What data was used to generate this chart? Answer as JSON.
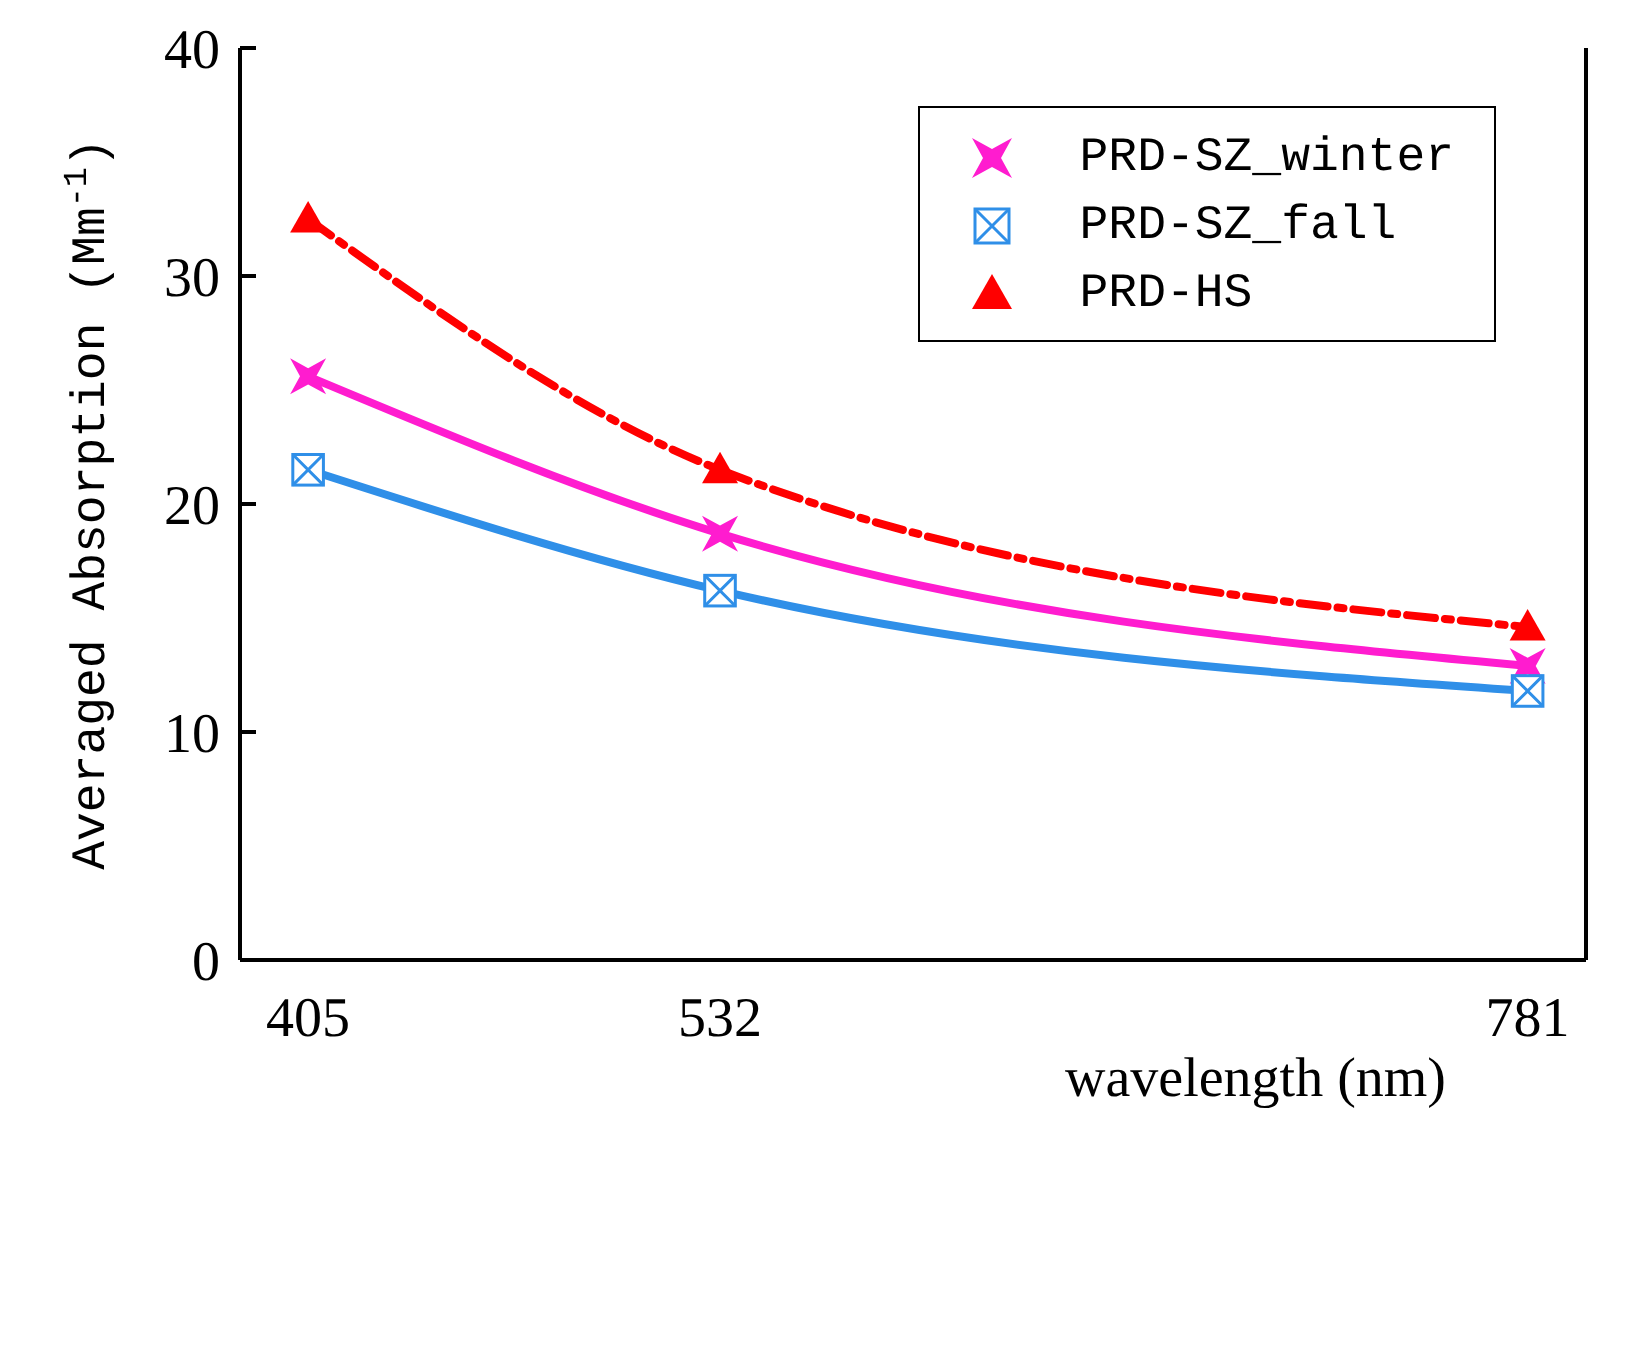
{
  "chart_data": {
    "type": "line",
    "xlabel": "wavelength (nm)",
    "ylabel": "Averaged Absorption (Mm$^{-1}$)",
    "x": [
      405,
      532,
      781
    ],
    "series": [
      {
        "name": "PRD-SZ_winter",
        "color": "#ff1ccf",
        "values": [
          25.6,
          18.7,
          12.9
        ],
        "marker": "star",
        "line_style": "solid"
      },
      {
        "name": "PRD-SZ_fall",
        "color": "#2f8fe8",
        "values": [
          21.5,
          16.2,
          11.8
        ],
        "marker": "square",
        "line_style": "solid"
      },
      {
        "name": "PRD-HS",
        "color": "#ff0000",
        "values": [
          32.5,
          21.5,
          14.6
        ],
        "marker": "triangle",
        "line_style": "dashed"
      }
    ],
    "xlim": [
      384,
      799
    ],
    "xticks": [
      405,
      532,
      781
    ],
    "ylim": [
      0,
      40
    ],
    "yticks": [
      0,
      10,
      20,
      30,
      40
    ],
    "grid": false,
    "legend": "top right"
  }
}
